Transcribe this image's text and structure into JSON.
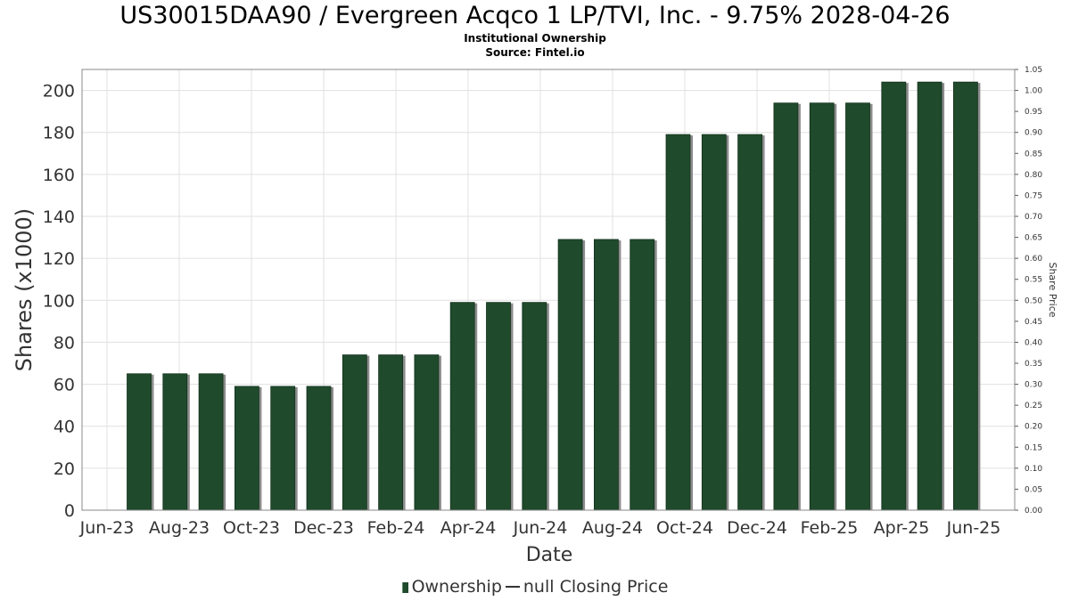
{
  "title": "US30015DAA90 / Evergreen Acqco 1 LP/TVI, Inc. - 9.75% 2028-04-26",
  "subtitle": "Institutional Ownership",
  "source": "Source: Fintel.io",
  "legend": {
    "ownership": "Ownership",
    "price": "null Closing Price"
  },
  "colors": {
    "bar": "#1f4a2c",
    "bar_shadow": "#8c8c8c",
    "grid": "#e0e0e0"
  },
  "chart_data": {
    "type": "bar",
    "xlabel": "Date",
    "ylabel": "Shares (x1000)",
    "y2label": "Share Price",
    "ylim": [
      0,
      210
    ],
    "y2lim": [
      0,
      1.05
    ],
    "yticks": [
      0,
      20,
      40,
      60,
      80,
      100,
      120,
      140,
      160,
      180,
      200
    ],
    "y2ticks": [
      "0.00",
      "0.05",
      "0.10",
      "0.15",
      "0.20",
      "0.25",
      "0.30",
      "0.35",
      "0.40",
      "0.45",
      "0.50",
      "0.55",
      "0.60",
      "0.65",
      "0.70",
      "0.75",
      "0.80",
      "0.85",
      "0.90",
      "0.95",
      "1.00",
      "1.05"
    ],
    "xticks": [
      "Jun-23",
      "Aug-23",
      "Oct-23",
      "Dec-23",
      "Feb-24",
      "Apr-24",
      "Jun-24",
      "Aug-24",
      "Oct-24",
      "Dec-24",
      "Feb-25",
      "Apr-25",
      "Jun-25"
    ],
    "grid": true,
    "legend_position": "bottom",
    "series": [
      {
        "name": "Ownership",
        "values": [
          65,
          65,
          65,
          59,
          59,
          59,
          74,
          74,
          74,
          99,
          99,
          99,
          129,
          129,
          129,
          179,
          179,
          179,
          194,
          194,
          194,
          204,
          204,
          204
        ]
      },
      {
        "name": "null Closing Price",
        "values": []
      }
    ]
  }
}
